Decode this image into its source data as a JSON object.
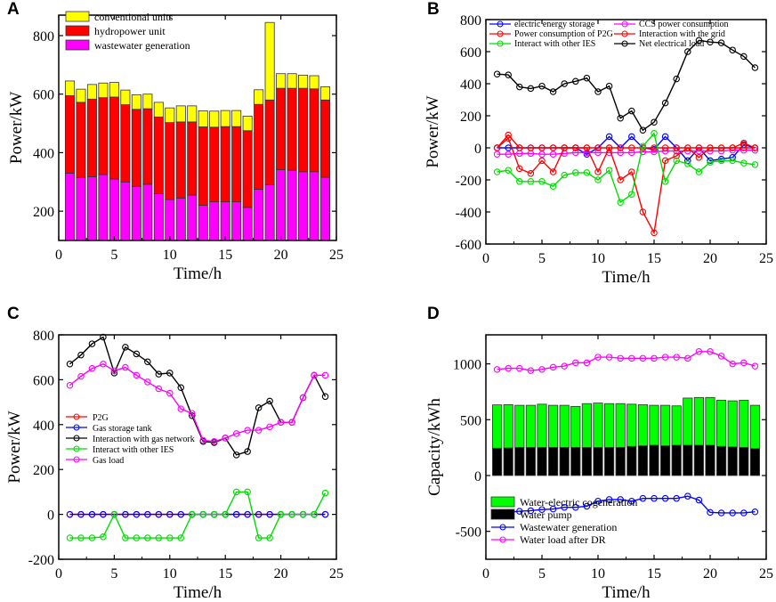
{
  "figure": {
    "panels": [
      "A",
      "B",
      "C",
      "D"
    ]
  },
  "chart_data": [
    {
      "panel": "A",
      "type": "bar",
      "stacked": true,
      "title": "",
      "xlabel": "Time/h",
      "ylabel": "Power/kW",
      "xlim": [
        0,
        25
      ],
      "ylim": [
        100,
        870
      ],
      "xticks": [
        0,
        5,
        10,
        15,
        20,
        25
      ],
      "yticks": [
        200,
        400,
        600,
        800
      ],
      "legend_position": "top-left",
      "x": [
        1,
        2,
        3,
        4,
        5,
        6,
        7,
        8,
        9,
        10,
        11,
        12,
        13,
        14,
        15,
        16,
        17,
        18,
        19,
        20,
        21,
        22,
        23,
        24
      ],
      "series": [
        {
          "name": "wastewater generation",
          "color": "#FF00FF",
          "values": [
            330,
            315,
            318,
            325,
            310,
            300,
            285,
            292,
            260,
            240,
            245,
            255,
            220,
            232,
            232,
            232,
            213,
            275,
            290,
            342,
            340,
            335,
            335,
            316
          ]
        },
        {
          "name": "hydropower unit",
          "color": "#FF0000",
          "values": [
            265,
            257,
            265,
            263,
            280,
            264,
            263,
            258,
            262,
            263,
            260,
            250,
            268,
            255,
            257,
            257,
            262,
            290,
            290,
            278,
            280,
            285,
            283,
            264
          ]
        },
        {
          "name": "conventional units",
          "color": "#FFFF00",
          "values": [
            50,
            45,
            50,
            50,
            50,
            50,
            50,
            50,
            50,
            50,
            55,
            55,
            55,
            55,
            55,
            55,
            50,
            50,
            265,
            50,
            50,
            45,
            45,
            45
          ]
        }
      ]
    },
    {
      "panel": "B",
      "type": "line",
      "title": "",
      "xlabel": "Time/h",
      "ylabel": "Power/kW",
      "xlim": [
        0,
        25
      ],
      "ylim": [
        -600,
        800
      ],
      "xticks": [
        0,
        5,
        10,
        15,
        20,
        25
      ],
      "yticks": [
        -600,
        -400,
        -200,
        0,
        200,
        400,
        600,
        800
      ],
      "legend_position": "top",
      "x": [
        1,
        2,
        3,
        4,
        5,
        6,
        7,
        8,
        9,
        10,
        11,
        12,
        13,
        14,
        15,
        16,
        17,
        18,
        19,
        20,
        21,
        22,
        23,
        24
      ],
      "series": [
        {
          "name": "electric energy storage",
          "color": "#0000FF",
          "values": [
            0,
            0,
            0,
            0,
            0,
            0,
            0,
            0,
            -40,
            0,
            70,
            0,
            70,
            0,
            -10,
            70,
            0,
            -80,
            0,
            -80,
            -70,
            -60,
            20,
            0
          ]
        },
        {
          "name": "CCS power consumption",
          "color": "#FF00FF",
          "values": [
            -40,
            -40,
            -35,
            -35,
            -40,
            -40,
            -35,
            -30,
            -30,
            -30,
            -30,
            -30,
            -30,
            -25,
            -25,
            -20,
            -20,
            -20,
            -20,
            -20,
            -20,
            -15,
            -15,
            -15
          ]
        },
        {
          "name": "Power consumption of P2G",
          "color": "#FF0000",
          "values": [
            0,
            80,
            0,
            0,
            0,
            0,
            0,
            0,
            0,
            0,
            0,
            0,
            0,
            0,
            0,
            0,
            0,
            0,
            0,
            0,
            0,
            0,
            30,
            0
          ]
        },
        {
          "name": "Interaction with the grid",
          "color": "#FF0000",
          "values": [
            0,
            60,
            -130,
            -160,
            -80,
            -150,
            0,
            0,
            0,
            -150,
            0,
            -200,
            -150,
            -400,
            -530,
            -80,
            -50,
            0,
            -60,
            0,
            0,
            0,
            0,
            0
          ]
        },
        {
          "name": "Interact with other IES",
          "color": "#00DD00",
          "values": [
            -150,
            -140,
            -210,
            -210,
            -210,
            -240,
            -170,
            -155,
            -155,
            -200,
            -140,
            -340,
            -290,
            10,
            90,
            -210,
            -80,
            -100,
            -150,
            -90,
            -80,
            -80,
            -95,
            -105
          ]
        },
        {
          "name": "Net electrical load",
          "color": "#000000",
          "values": [
            460,
            455,
            380,
            370,
            385,
            350,
            400,
            415,
            435,
            350,
            385,
            185,
            230,
            110,
            160,
            280,
            430,
            600,
            670,
            660,
            655,
            610,
            570,
            500
          ]
        }
      ]
    },
    {
      "panel": "C",
      "type": "line",
      "title": "",
      "xlabel": "Time/h",
      "ylabel": "Power/kW",
      "xlim": [
        0,
        25
      ],
      "ylim": [
        -200,
        800
      ],
      "xticks": [
        0,
        5,
        10,
        15,
        20,
        25
      ],
      "yticks": [
        -200,
        0,
        200,
        400,
        600,
        800
      ],
      "legend_position": "bottom-left",
      "x": [
        1,
        2,
        3,
        4,
        5,
        6,
        7,
        8,
        9,
        10,
        11,
        12,
        13,
        14,
        15,
        16,
        17,
        18,
        19,
        20,
        21,
        22,
        23,
        24
      ],
      "series": [
        {
          "name": "P2G",
          "color": "#FF0000",
          "values": [
            0,
            0,
            0,
            0,
            0,
            0,
            0,
            0,
            0,
            0,
            0,
            0,
            0,
            0,
            0,
            0,
            0,
            0,
            0,
            0,
            0,
            0,
            0,
            0
          ]
        },
        {
          "name": "Gas storage tank",
          "color": "#0000FF",
          "values": [
            0,
            0,
            0,
            0,
            0,
            0,
            0,
            0,
            0,
            0,
            0,
            0,
            0,
            0,
            0,
            0,
            0,
            0,
            0,
            0,
            0,
            0,
            0,
            0
          ]
        },
        {
          "name": "Interaction with gas network",
          "color": "#000000",
          "values": [
            670,
            710,
            760,
            790,
            630,
            745,
            715,
            680,
            625,
            630,
            565,
            440,
            325,
            320,
            340,
            265,
            280,
            475,
            505,
            410,
            410,
            520,
            620,
            525
          ]
        },
        {
          "name": "Interact with other IES",
          "color": "#00DD00",
          "values": [
            -105,
            -105,
            -105,
            -100,
            0,
            -105,
            -105,
            -105,
            -105,
            -105,
            -105,
            0,
            0,
            0,
            0,
            100,
            100,
            -105,
            -105,
            0,
            0,
            0,
            0,
            95
          ]
        },
        {
          "name": "Gas load",
          "color": "#FF00FF",
          "values": [
            575,
            615,
            650,
            670,
            640,
            655,
            620,
            590,
            560,
            540,
            470,
            450,
            330,
            325,
            340,
            360,
            375,
            375,
            390,
            410,
            410,
            520,
            620,
            620
          ]
        }
      ]
    },
    {
      "panel": "D",
      "type": "bar",
      "title": "",
      "xlabel": "Time/h",
      "ylabel": "Capacity/kWh",
      "xlim": [
        0,
        25
      ],
      "ylim": [
        -750,
        1260
      ],
      "xticks": [
        0,
        5,
        10,
        15,
        20,
        25
      ],
      "yticks": [
        -500,
        0,
        500,
        1000
      ],
      "legend_position": "bottom-left",
      "x": [
        1,
        2,
        3,
        4,
        5,
        6,
        7,
        8,
        9,
        10,
        11,
        12,
        13,
        14,
        15,
        16,
        17,
        18,
        19,
        20,
        21,
        22,
        23,
        24
      ],
      "series": [
        {
          "name": "Water-electric cogeneration",
          "type": "bar",
          "color": "#00FF00",
          "values": [
            388,
            388,
            378,
            378,
            388,
            378,
            378,
            368,
            393,
            398,
            393,
            393,
            378,
            368,
            358,
            363,
            353,
            423,
            428,
            428,
            413,
            413,
            423,
            388
          ]
        },
        {
          "name": "Water pump",
          "type": "bar",
          "color": "#000000",
          "values": [
            245,
            247,
            251,
            251,
            251,
            251,
            251,
            251,
            251,
            251,
            251,
            251,
            261,
            266,
            271,
            266,
            271,
            271,
            271,
            271,
            261,
            256,
            251,
            241
          ]
        },
        {
          "name": "Wastewater generation",
          "type": "line",
          "color": "#0000FF",
          "values": [
            -340,
            -330,
            -320,
            -315,
            -305,
            -300,
            -285,
            -285,
            -275,
            -230,
            -215,
            -215,
            -230,
            -205,
            -205,
            -205,
            -205,
            -185,
            -220,
            -330,
            -335,
            -335,
            -335,
            -325
          ]
        },
        {
          "name": "Water load after DR",
          "type": "line",
          "color": "#FF00FF",
          "values": [
            950,
            960,
            960,
            940,
            950,
            970,
            980,
            1010,
            1010,
            1060,
            1060,
            1050,
            1050,
            1050,
            1050,
            1060,
            1060,
            1050,
            1110,
            1110,
            1070,
            1000,
            1010,
            980
          ]
        }
      ]
    }
  ]
}
